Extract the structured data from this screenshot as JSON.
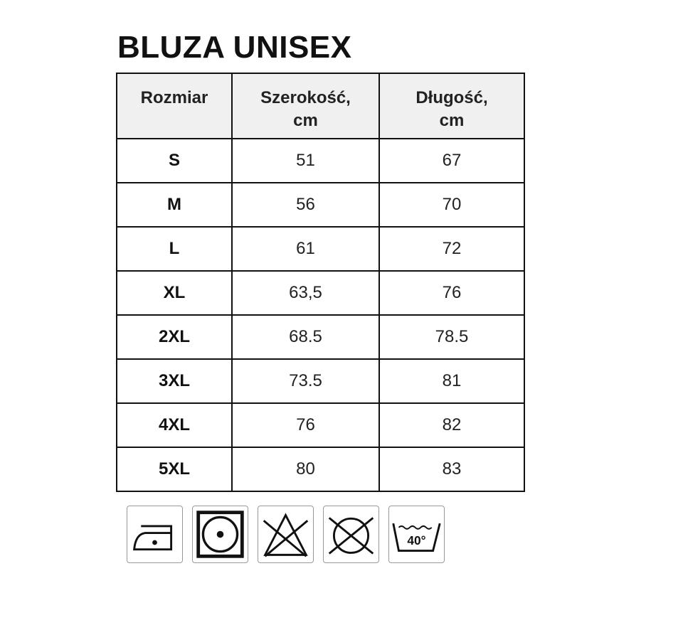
{
  "title": "BLUZA UNISEX",
  "table": {
    "headers": [
      [
        "Rozmiar"
      ],
      [
        "Szerokość,",
        "cm"
      ],
      [
        "Długość,",
        "cm"
      ]
    ],
    "rows": [
      [
        "S",
        "51",
        "67"
      ],
      [
        "M",
        "56",
        "70"
      ],
      [
        "L",
        "61",
        "72"
      ],
      [
        "XL",
        "63,5",
        "76"
      ],
      [
        "2XL",
        "68.5",
        "78.5"
      ],
      [
        "3XL",
        "73.5",
        "81"
      ],
      [
        "4XL",
        "76",
        "82"
      ],
      [
        "5XL",
        "80",
        "83"
      ]
    ]
  },
  "care_icons": [
    {
      "name": "iron-low-temperature-icon"
    },
    {
      "name": "tumble-dry-icon"
    },
    {
      "name": "do-not-bleach-icon"
    },
    {
      "name": "do-not-dry-clean-icon"
    },
    {
      "name": "wash-40-icon",
      "label": "40°"
    }
  ]
}
